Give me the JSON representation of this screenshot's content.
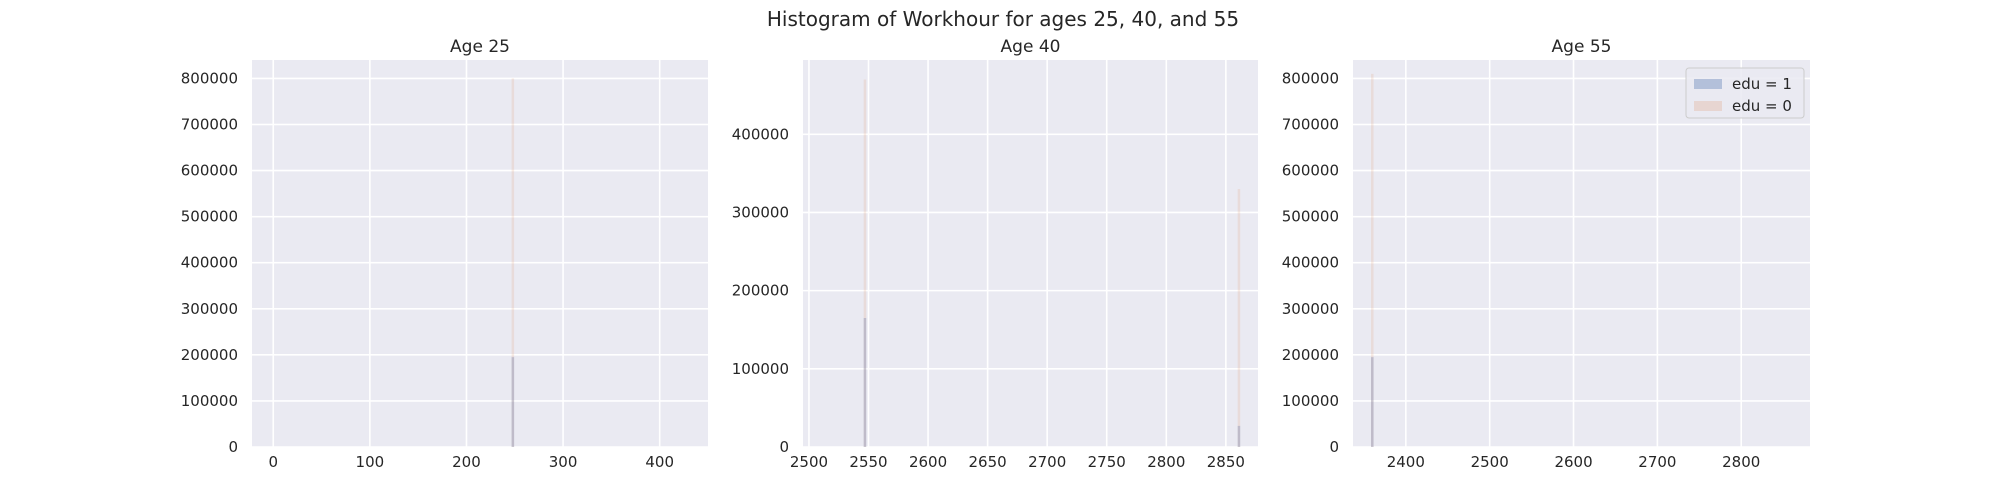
{
  "figure": {
    "suptitle": "Histogram of Workhour for ages 25, 40, and 55"
  },
  "colors": {
    "background": "#eaeaf2",
    "grid": "#ffffff",
    "edu1": "#4c72b0",
    "edu0": "#dd8452"
  },
  "legend": {
    "placement": "top-right of third subplot",
    "entries": [
      "edu = 1",
      "edu = 0"
    ]
  },
  "chart_data": [
    {
      "type": "bar",
      "title": "Age 25",
      "xlim": [
        -22,
        450
      ],
      "ylim": [
        0,
        840000
      ],
      "xticks": [
        0,
        100,
        200,
        300,
        400
      ],
      "yticks": [
        0,
        100000,
        200000,
        300000,
        400000,
        500000,
        600000,
        700000,
        800000
      ],
      "grid": true,
      "series": [
        {
          "name": "edu = 1",
          "bins": [
            {
              "x": 248,
              "y": 195000
            }
          ]
        },
        {
          "name": "edu = 0",
          "bins": [
            {
              "x": 248,
              "y": 800000
            }
          ]
        }
      ]
    },
    {
      "type": "bar",
      "title": "Age 40",
      "xlim": [
        2495,
        2877
      ],
      "ylim": [
        0,
        495000
      ],
      "xticks": [
        2500,
        2550,
        2600,
        2650,
        2700,
        2750,
        2800,
        2850
      ],
      "yticks": [
        0,
        100000,
        200000,
        300000,
        400000
      ],
      "grid": true,
      "series": [
        {
          "name": "edu = 1",
          "bins": [
            {
              "x": 2547,
              "y": 165000
            },
            {
              "x": 2861,
              "y": 27000
            }
          ]
        },
        {
          "name": "edu = 0",
          "bins": [
            {
              "x": 2547,
              "y": 470000
            },
            {
              "x": 2861,
              "y": 330000
            }
          ]
        }
      ]
    },
    {
      "type": "bar",
      "title": "Age 55",
      "xlim": [
        2337,
        2882
      ],
      "ylim": [
        0,
        840000
      ],
      "xticks": [
        2400,
        2500,
        2600,
        2700,
        2800
      ],
      "yticks": [
        0,
        100000,
        200000,
        300000,
        400000,
        500000,
        600000,
        700000,
        800000
      ],
      "grid": true,
      "series": [
        {
          "name": "edu = 1",
          "bins": [
            {
              "x": 2360,
              "y": 195000
            }
          ]
        },
        {
          "name": "edu = 0",
          "bins": [
            {
              "x": 2360,
              "y": 810000
            }
          ]
        }
      ]
    }
  ]
}
